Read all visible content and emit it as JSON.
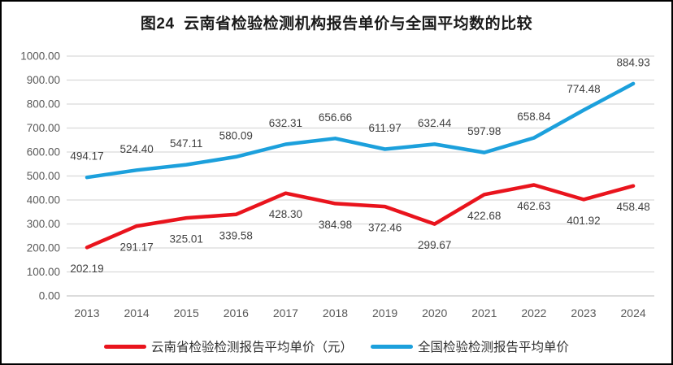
{
  "chart_data": {
    "type": "line",
    "title": "图24  云南省检验检测机构报告单价与全国平均数的比较",
    "categories": [
      "2013",
      "2014",
      "2015",
      "2016",
      "2017",
      "2018",
      "2019",
      "2020",
      "2021",
      "2022",
      "2023",
      "2024"
    ],
    "series": [
      {
        "name": "云南省检验检测报告平均单价（元）",
        "color": "#e9141d",
        "label_position": "below",
        "values": [
          202.19,
          291.17,
          325.01,
          339.58,
          428.3,
          384.98,
          372.46,
          299.67,
          422.68,
          462.63,
          401.92,
          458.48
        ]
      },
      {
        "name": "全国检验检测报告平均单价",
        "color": "#1ca0dc",
        "label_position": "above",
        "values": [
          494.17,
          524.4,
          547.11,
          580.09,
          632.31,
          656.66,
          611.97,
          632.44,
          597.98,
          658.84,
          774.48,
          884.93
        ]
      }
    ],
    "xlabel": "",
    "ylabel": "",
    "ylim": [
      0,
      1000
    ],
    "y_tick_step": 100,
    "y_tick_format": "2dp",
    "grid": true,
    "data_labels": true,
    "legend_position": "bottom"
  },
  "colors": {
    "grid_line": "#d9d9d9",
    "axis_line": "#c6c6c6",
    "tick_text": "#595959",
    "data_label_text": "#3f3f3f",
    "title_text": "#1a1a1a",
    "frame_border": "#000000"
  }
}
